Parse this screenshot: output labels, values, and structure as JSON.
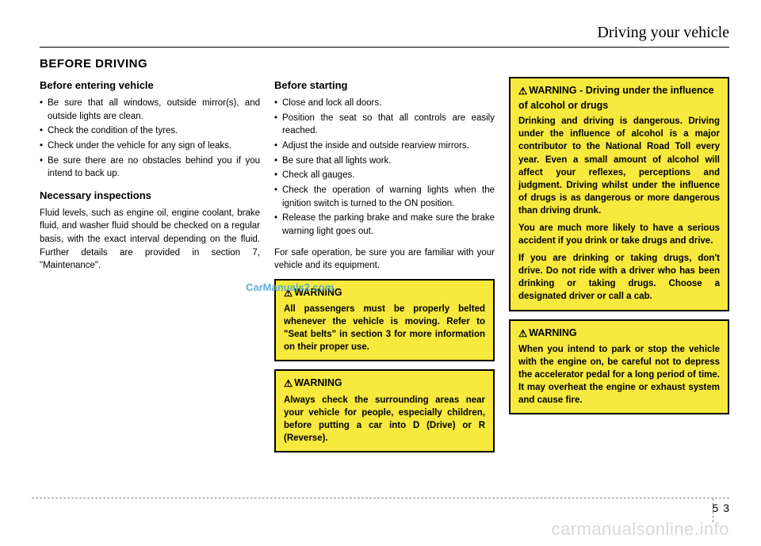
{
  "header": "Driving your vehicle",
  "sectionTitle": "BEFORE DRIVING",
  "col1": {
    "h1": "Before entering vehicle",
    "list1": [
      "Be sure that all windows, outside mirror(s), and outside lights are clean.",
      "Check the condition of the tyres.",
      "Check under the vehicle for any sign of leaks.",
      "Be sure there are no obstacles behind you if you intend to back up."
    ],
    "h2": "Necessary inspections",
    "p2": "Fluid levels, such as engine oil, engine coolant, brake fluid, and washer fluid should be checked on a regular basis, with the exact interval depending on the fluid. Further details are provided in section 7, \"Maintenance\"."
  },
  "col2": {
    "h1": "Before starting",
    "list1": [
      "Close and lock all doors.",
      "Position the seat so that all controls are easily reached.",
      "Adjust the inside and outside rearview mirrors.",
      "Be sure that all lights work.",
      "Check all gauges.",
      "Check the operation of warning lights when the ignition switch is turned to the ON position.",
      "Release the parking brake and make sure the brake warning light goes out."
    ],
    "p1": "For safe operation, be sure you are familiar with your vehicle and its equipment.",
    "warn1Title": "WARNING",
    "warn1Body": "All passengers must be properly belted whenever the vehicle is moving. Refer to \"Seat belts\" in section 3 for more information on their proper use.",
    "warn2Title": "WARNING",
    "warn2Body": "Always check the surrounding areas near your vehicle for people, especially children, before putting a car into D (Drive) or R (Reverse)."
  },
  "col3": {
    "warn1Title": "WARNING - Driving under the influence of alcohol or drugs",
    "warn1p1": "Drinking and driving is dangerous. Driving under the influence of alcohol is a major contributor to the National Road Toll every year. Even a small amount of alcohol will affect your reflexes, perceptions and judgment. Driving whilst under the influence of drugs is as dangerous or more dangerous than driving drunk.",
    "warn1p2": "You are much more likely to have a serious accident if you drink or take drugs and drive.",
    "warn1p3": "If you are drinking or taking drugs, don't drive. Do not ride with a driver who has been drinking or taking drugs. Choose a designated driver or call a cab.",
    "warn2Title": "WARNING",
    "warn2Body": "When you intend to park or stop the vehicle with the engine on, be careful not to depress the accelerator pedal for a long period of time. It may overheat the engine or exhaust system and cause fire."
  },
  "watermark": "CarManuals2.com",
  "footerWatermark": "carmanualsonline.info",
  "pageChapter": "5",
  "pageNumber": "3",
  "warningTriangle": "⚠"
}
